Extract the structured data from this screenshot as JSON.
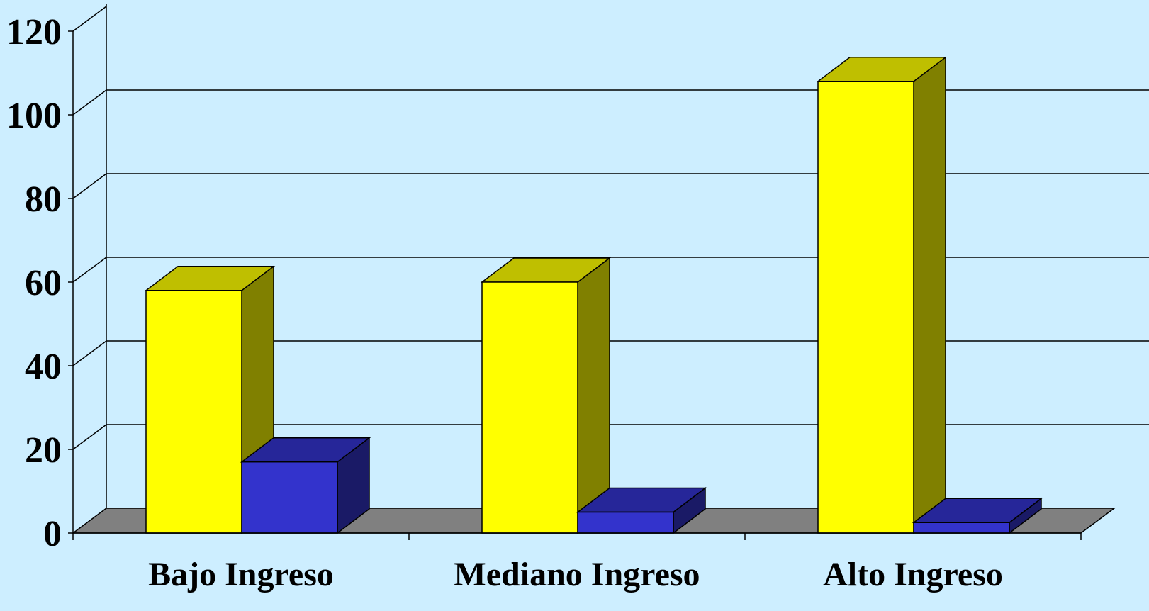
{
  "chart_data": {
    "type": "bar",
    "style": "3d-clustered-column",
    "categories": [
      "Bajo Ingreso",
      "Mediano Ingreso",
      "Alto Ingreso"
    ],
    "series": [
      {
        "values": [
          58,
          60,
          108
        ],
        "color": "#ffff00"
      },
      {
        "values": [
          17,
          5,
          2.5
        ],
        "color": "#3333cc"
      }
    ],
    "ylim": [
      0,
      120
    ],
    "yticks": [
      "0",
      "20",
      "40",
      "60",
      "80",
      "100",
      "120"
    ],
    "grid": true,
    "legend": "none",
    "colors": {
      "background": "#cdeeff",
      "floor": "#808080",
      "grid": "#000000"
    }
  }
}
